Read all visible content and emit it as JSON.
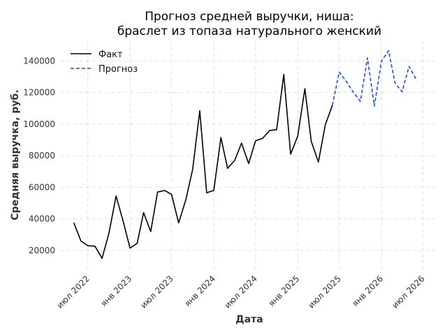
{
  "chart_data": {
    "type": "line",
    "title": [
      "Прогноз средней выручки, ниша:",
      "браслет из топаза натурального женский"
    ],
    "xlabel": "Дата",
    "ylabel": "Средняя выручка, руб.",
    "xlim": [
      "2022-03-05",
      "2026-09-01"
    ],
    "ylim": [
      8000,
      153000
    ],
    "grid": true,
    "legend_position": "top-left",
    "x_ticks": [
      {
        "date": "2022-07-01",
        "label": "июл 2022"
      },
      {
        "date": "2023-01-01",
        "label": "янв 2023"
      },
      {
        "date": "2023-07-01",
        "label": "июл 2023"
      },
      {
        "date": "2024-01-01",
        "label": "янв 2024"
      },
      {
        "date": "2024-07-01",
        "label": "июл 2024"
      },
      {
        "date": "2025-01-01",
        "label": "янв 2025"
      },
      {
        "date": "2025-07-01",
        "label": "июл 2025"
      },
      {
        "date": "2026-01-01",
        "label": "янв 2026"
      },
      {
        "date": "2026-07-01",
        "label": "июл 2026"
      }
    ],
    "y_ticks": [
      20000,
      40000,
      60000,
      80000,
      100000,
      120000,
      140000
    ],
    "series": [
      {
        "name": "Факт",
        "color": "#000000",
        "style": "solid",
        "points": [
          [
            "2022-05-01",
            37500
          ],
          [
            "2022-06-01",
            26000
          ],
          [
            "2022-07-01",
            23000
          ],
          [
            "2022-08-01",
            22700
          ],
          [
            "2022-09-01",
            15000
          ],
          [
            "2022-10-01",
            31000
          ],
          [
            "2022-11-01",
            54500
          ],
          [
            "2022-12-01",
            39000
          ],
          [
            "2023-01-01",
            21500
          ],
          [
            "2023-02-01",
            24500
          ],
          [
            "2023-03-01",
            44000
          ],
          [
            "2023-04-01",
            32000
          ],
          [
            "2023-05-01",
            57000
          ],
          [
            "2023-06-01",
            58000
          ],
          [
            "2023-07-01",
            55500
          ],
          [
            "2023-08-01",
            37500
          ],
          [
            "2023-09-01",
            52000
          ],
          [
            "2023-10-01",
            71500
          ],
          [
            "2023-11-01",
            108500
          ],
          [
            "2023-12-01",
            56500
          ],
          [
            "2024-01-01",
            58000
          ],
          [
            "2024-02-01",
            91500
          ],
          [
            "2024-03-01",
            72000
          ],
          [
            "2024-04-01",
            77000
          ],
          [
            "2024-05-01",
            88000
          ],
          [
            "2024-06-01",
            75000
          ],
          [
            "2024-07-01",
            89500
          ],
          [
            "2024-08-01",
            91000
          ],
          [
            "2024-09-01",
            96000
          ],
          [
            "2024-10-01",
            96500
          ],
          [
            "2024-11-01",
            131500
          ],
          [
            "2024-12-01",
            81000
          ],
          [
            "2025-01-01",
            92500
          ],
          [
            "2025-02-01",
            122500
          ],
          [
            "2025-03-01",
            89000
          ],
          [
            "2025-04-01",
            76000
          ],
          [
            "2025-05-01",
            99500
          ],
          [
            "2025-06-01",
            112000
          ]
        ]
      },
      {
        "name": "Прогноз",
        "color": "#1f4fc8",
        "style": "dashed",
        "points": [
          [
            "2025-06-01",
            112000
          ],
          [
            "2025-07-01",
            133000
          ],
          [
            "2025-08-01",
            127000
          ],
          [
            "2025-09-01",
            120000
          ],
          [
            "2025-10-01",
            114500
          ],
          [
            "2025-11-01",
            142000
          ],
          [
            "2025-12-01",
            111500
          ],
          [
            "2026-01-01",
            140000
          ],
          [
            "2026-02-01",
            146500
          ],
          [
            "2026-03-01",
            126000
          ],
          [
            "2026-04-01",
            120500
          ],
          [
            "2026-05-01",
            136500
          ],
          [
            "2026-06-01",
            128500
          ]
        ]
      }
    ]
  }
}
